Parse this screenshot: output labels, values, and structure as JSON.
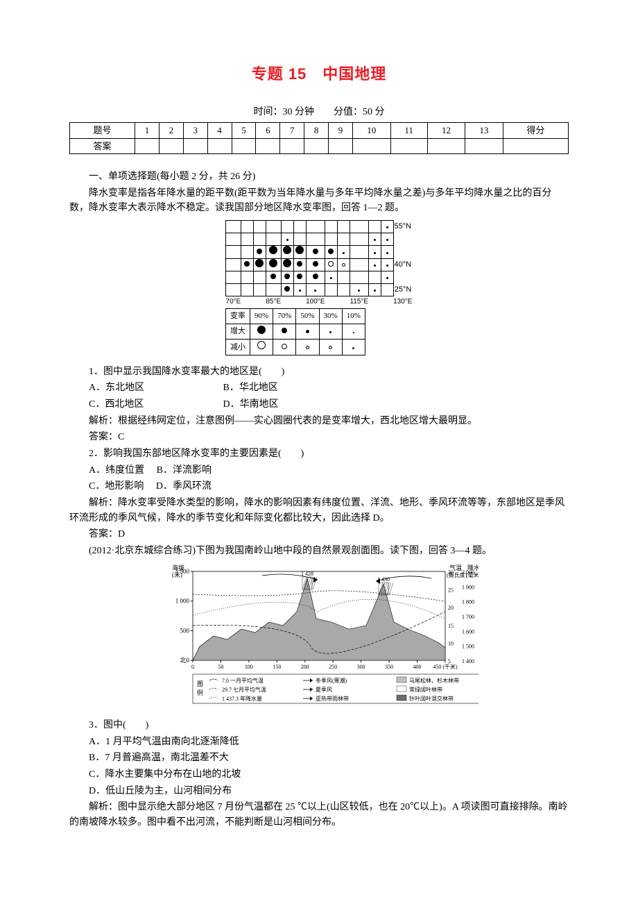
{
  "title": "专题 15　中国地理",
  "timeScore": "时间：30 分钟　　分值：50 分",
  "answerGrid": {
    "headers": [
      "题号",
      "1",
      "2",
      "3",
      "4",
      "5",
      "6",
      "7",
      "8",
      "9",
      "10",
      "11",
      "12",
      "13",
      "得分"
    ],
    "rowLabel": "答案"
  },
  "section1Title": "一、单项选择题(每小题 2 分，共 26 分)",
  "intro1": "降水变率是指各年降水量的距平数(距平数为当年降水量与多年平均降水量之差)与多年平均降水量之比的百分数，降水变率大表示降水不稳定。读我国部分地区降水变率图，回答 1—2 题。",
  "fig1": {
    "latLabels": [
      "55°N",
      "40°N",
      "25°N"
    ],
    "lonLabels": [
      "70°E",
      "85°E",
      "100°E",
      "115°E",
      "130°E"
    ],
    "legend": {
      "row1": [
        "变率",
        "90%",
        "70%",
        "50%",
        "30%",
        "10%"
      ],
      "row2Label": "增大",
      "row3Label": "减小"
    },
    "grid": [
      [
        "",
        "",
        "",
        "",
        "",
        "",
        "",
        "",
        "",
        "",
        "",
        "t"
      ],
      [
        "",
        "",
        "",
        "",
        "t",
        "",
        "",
        "",
        "",
        "",
        "t",
        "t"
      ],
      [
        "",
        "",
        "m",
        "B",
        "B",
        "B",
        "m",
        "m",
        "t",
        "",
        "t",
        "t"
      ],
      [
        "",
        "m",
        "B",
        "B",
        "B",
        "m",
        "m",
        "cM",
        "cS",
        "",
        "t",
        "t"
      ],
      [
        "",
        "",
        "",
        "m",
        "m",
        "m",
        "m",
        "t",
        "",
        "",
        "",
        "t"
      ],
      [
        "",
        "",
        "",
        "",
        "m",
        "t",
        "t",
        "",
        "",
        "t",
        "t",
        ""
      ]
    ]
  },
  "q1": {
    "stem": "1．图中显示我国降水变率最大的地区是(　　)",
    "opts": [
      "A．东北地区",
      "B．华北地区",
      "C．西北地区",
      "D．华南地区"
    ],
    "analysis": "解析：根据经纬网定位，注意图例——实心圆圈代表的是变率增大，西北地区增大最明显。",
    "answer": "答案：C"
  },
  "q2": {
    "stem": "2．影响我国东部地区降水变率的主要因素是(　　)",
    "opts": [
      "A．纬度位置",
      "B．洋流影响",
      "C．地形影响",
      "D．季风环流"
    ],
    "analysis": "解析：降水变率受降水类型的影响，降水的影响因素有纬度位置、洋流、地形、季风环流等等，东部地区是季风环流形成的季风气候，降水的季节变化和年际变化都比较大，因此选择 D。",
    "answer": "答案：D"
  },
  "intro2": "(2012·北京东城综合练习)下图为我国南岭山地中段的自然景观剖面图。读下图，回答 3—4 题。",
  "fig2": {
    "leftAxisLabel": "海拔\n(米)",
    "rightAxisLabel1": "气温\n(摄氏度)",
    "rightAxisLabel2": "降水\n(毫米)",
    "leftTicks": [
      "1 500",
      "1 000",
      "500",
      "北0"
    ],
    "rightTempTicks": [
      "30",
      "25",
      "20",
      "15",
      "10",
      "5"
    ],
    "rightPrecTicks": [
      "2 000",
      "1 900",
      "1 800",
      "1 700",
      "1 600",
      "1 500",
      "1 400"
    ],
    "xTicks": [
      "0",
      "50",
      "100",
      "150",
      "200",
      "250",
      "300",
      "350",
      "400",
      "450 (千米)"
    ],
    "xEnd": "南",
    "peaks": [
      "1 428",
      "1 430"
    ],
    "legendHeader": "图\n例",
    "legendItems": [
      "7.0 一月平均气温",
      "冬季风(寒潮)",
      "马尾松林、杉木林带",
      "29.7 七月平均气温",
      "夏季风",
      "常绿阔叶林带",
      "1 437.3 年降水量",
      "亚热带雨林带",
      "针叶阔叶混交林带"
    ],
    "colors": {
      "profile_fill": "#a9a9a9",
      "hatch_dark": "#6e6e6e",
      "hatch_light": "#c0c0c0",
      "line": "#000000",
      "bg": "#ffffff"
    }
  },
  "q3": {
    "stem": "3．图中(　　)",
    "opts": [
      "A．1 月平均气温由南向北逐渐降低",
      "B．7 月普遍高温，南北温差不大",
      "C．降水主要集中分布在山地的北坡",
      "D．低山丘陵为主，山河相间分布"
    ],
    "analysis": "解析：图中显示绝大部分地区 7 月份气温都在 25 ℃以上(山区较低，也在 20℃以上)。A 项读图可直接排除。南岭的南坡降水较多。图中看不出河流，不能判断是山河相间分布。"
  }
}
